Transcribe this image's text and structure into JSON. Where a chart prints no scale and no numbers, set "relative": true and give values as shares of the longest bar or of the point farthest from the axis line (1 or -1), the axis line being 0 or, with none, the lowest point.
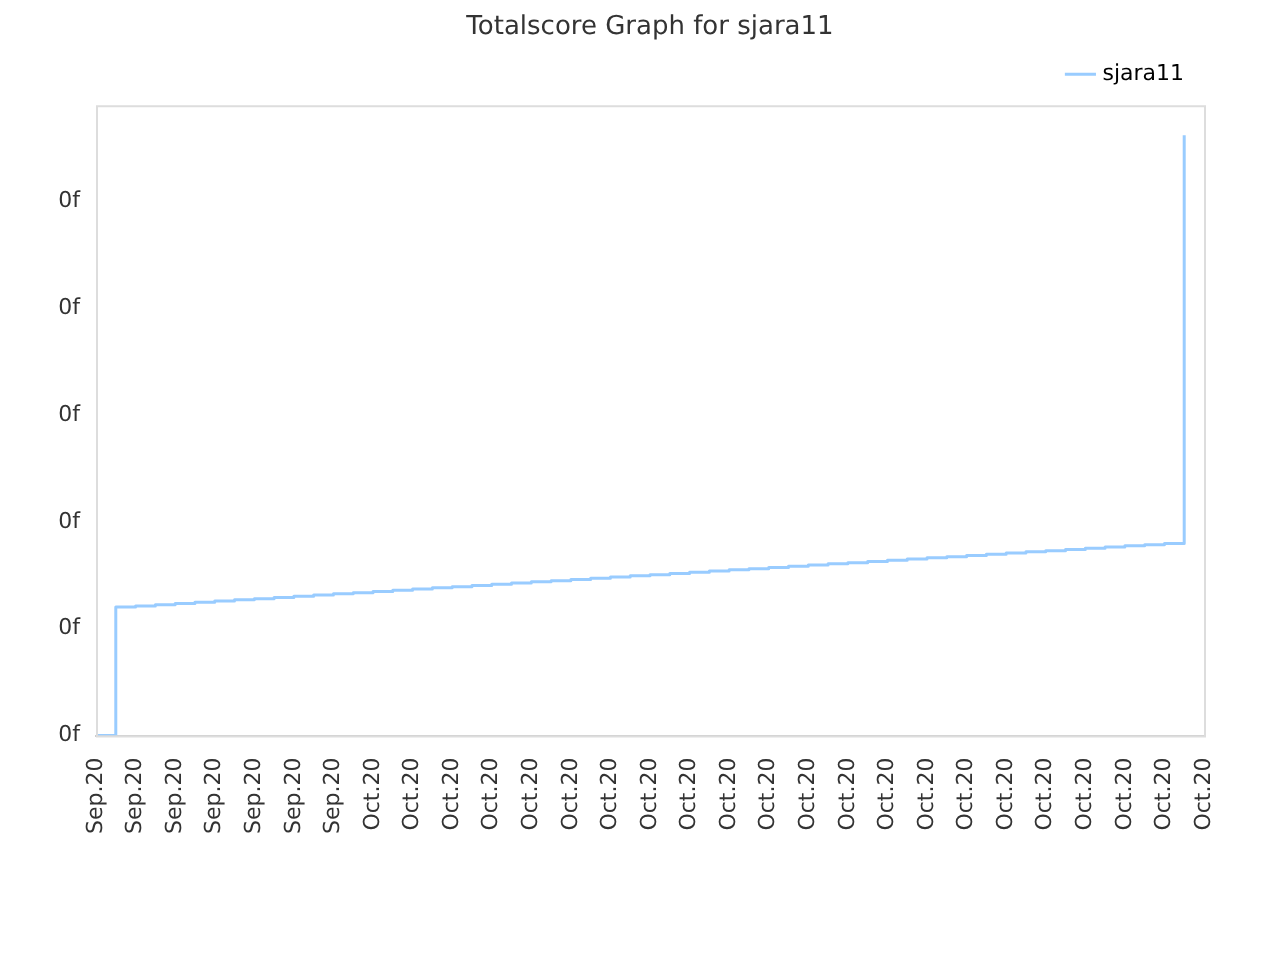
{
  "chart_data": {
    "type": "step",
    "title": "Totalscore Graph for sjara11",
    "relative": true,
    "categories": [
      "Sep.20",
      null,
      "Sep.20",
      null,
      "Sep.20",
      null,
      "Sep.20",
      null,
      "Sep.20",
      null,
      "Sep.20",
      null,
      "Sep.20",
      null,
      "Oct.20",
      null,
      "Oct.20",
      null,
      "Oct.20",
      null,
      "Oct.20",
      null,
      "Oct.20",
      null,
      "Oct.20",
      null,
      "Oct.20",
      null,
      "Oct.20",
      null,
      "Oct.20",
      null,
      "Oct.20",
      null,
      "Oct.20",
      null,
      "Oct.20",
      null,
      "Oct.20",
      null,
      "Oct.20",
      null,
      "Oct.20",
      null,
      "Oct.20",
      null,
      "Oct.20",
      null,
      "Oct.20",
      null,
      "Oct.20",
      null,
      "Oct.20",
      null,
      "Oct.20",
      null,
      "Oct.20"
    ],
    "series": [
      {
        "name": "sjara11",
        "color": "#99ccff",
        "values": [
          0,
          0.214,
          0.216,
          0.218,
          0.22,
          0.222,
          0.224,
          0.226,
          0.228,
          0.23,
          0.232,
          0.234,
          0.236,
          0.238,
          0.24,
          0.242,
          0.244,
          0.246,
          0.248,
          0.25,
          0.252,
          0.254,
          0.256,
          0.258,
          0.26,
          0.262,
          0.264,
          0.266,
          0.268,
          0.27,
          0.272,
          0.274,
          0.276,
          0.278,
          0.28,
          0.282,
          0.284,
          0.286,
          0.288,
          0.29,
          0.292,
          0.294,
          0.296,
          0.298,
          0.3,
          0.302,
          0.304,
          0.306,
          0.308,
          0.31,
          0.312,
          0.314,
          0.316,
          0.318,
          0.32,
          1,
          null
        ]
      }
    ],
    "annotations": [
      "0f",
      "0f",
      "0f",
      "0f",
      "0f",
      "0f"
    ],
    "legend": "top right",
    "marker": "none",
    "line_style": "solid"
  }
}
